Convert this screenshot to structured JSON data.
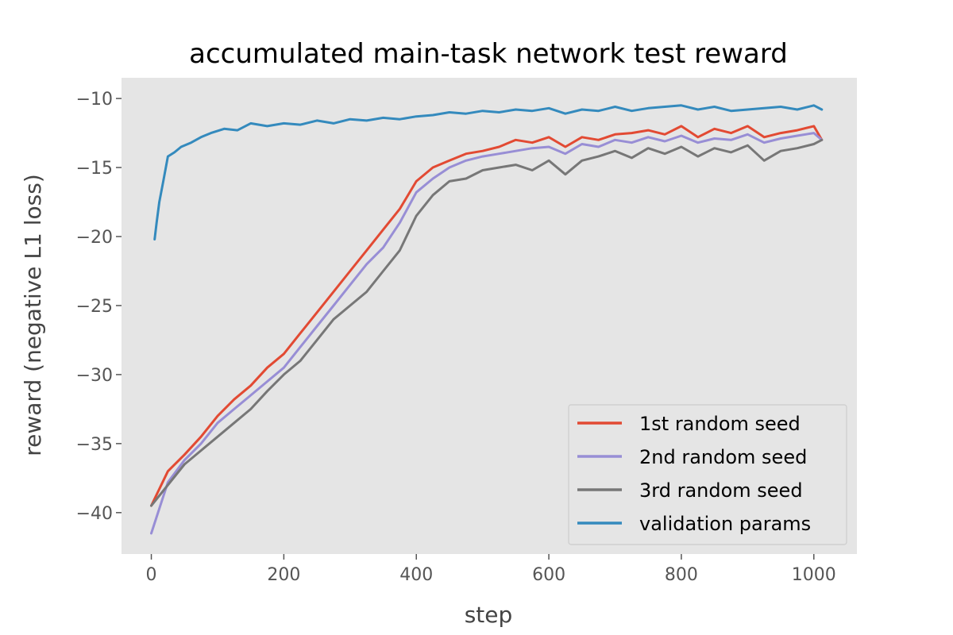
{
  "chart_data": {
    "type": "line",
    "title": "accumulated main-task network test reward",
    "xlabel": "step",
    "ylabel": "reward (negative L1 loss)",
    "xlim": [
      -45,
      1065
    ],
    "ylim": [
      -43.0,
      -8.5
    ],
    "xticks": [
      0,
      200,
      400,
      600,
      800,
      1000
    ],
    "yticks": [
      -40,
      -35,
      -30,
      -25,
      -20,
      -15,
      -10
    ],
    "xtick_labels": [
      "0",
      "200",
      "400",
      "600",
      "800",
      "1000"
    ],
    "ytick_labels": [
      "−40",
      "−35",
      "−30",
      "−25",
      "−20",
      "−15",
      "−10"
    ],
    "grid": false,
    "background": "#E5E5E5",
    "legend_position": "lower-right",
    "series": [
      {
        "name": "1st random seed",
        "color": "#E24A33",
        "x": [
          0,
          25,
          50,
          75,
          100,
          125,
          150,
          175,
          200,
          225,
          250,
          275,
          300,
          325,
          350,
          375,
          400,
          425,
          450,
          475,
          500,
          525,
          550,
          575,
          600,
          625,
          650,
          675,
          700,
          725,
          750,
          775,
          800,
          825,
          850,
          875,
          900,
          925,
          950,
          975,
          1000,
          1012
        ],
        "y": [
          -39.5,
          -37.0,
          -35.8,
          -34.5,
          -33.0,
          -31.8,
          -30.8,
          -29.5,
          -28.5,
          -27.0,
          -25.5,
          -24.0,
          -22.5,
          -21.0,
          -19.5,
          -18.0,
          -16.0,
          -15.0,
          -14.5,
          -14.0,
          -13.8,
          -13.5,
          -13.0,
          -13.2,
          -12.8,
          -13.5,
          -12.8,
          -13.0,
          -12.6,
          -12.5,
          -12.3,
          -12.6,
          -12.0,
          -12.8,
          -12.2,
          -12.5,
          -12.0,
          -12.8,
          -12.5,
          -12.3,
          -12.0,
          -13.0
        ]
      },
      {
        "name": "2nd random seed",
        "color": "#988ED5",
        "x": [
          0,
          25,
          50,
          75,
          100,
          125,
          150,
          175,
          200,
          225,
          250,
          275,
          300,
          325,
          350,
          375,
          400,
          425,
          450,
          475,
          500,
          525,
          550,
          575,
          600,
          625,
          650,
          675,
          700,
          725,
          750,
          775,
          800,
          825,
          850,
          875,
          900,
          925,
          950,
          975,
          1000,
          1012
        ],
        "y": [
          -41.5,
          -37.8,
          -36.2,
          -35.0,
          -33.5,
          -32.5,
          -31.5,
          -30.5,
          -29.5,
          -28.0,
          -26.5,
          -25.0,
          -23.5,
          -22.0,
          -20.8,
          -19.0,
          -16.8,
          -15.8,
          -15.0,
          -14.5,
          -14.2,
          -14.0,
          -13.8,
          -13.6,
          -13.5,
          -14.0,
          -13.3,
          -13.5,
          -13.0,
          -13.2,
          -12.8,
          -13.1,
          -12.7,
          -13.2,
          -12.9,
          -13.0,
          -12.6,
          -13.2,
          -12.9,
          -12.7,
          -12.5,
          -13.0
        ]
      },
      {
        "name": "3rd random seed",
        "color": "#777777",
        "x": [
          0,
          25,
          50,
          75,
          100,
          125,
          150,
          175,
          200,
          225,
          250,
          275,
          300,
          325,
          350,
          375,
          400,
          425,
          450,
          475,
          500,
          525,
          550,
          575,
          600,
          625,
          650,
          675,
          700,
          725,
          750,
          775,
          800,
          825,
          850,
          875,
          900,
          925,
          950,
          975,
          1000,
          1012
        ],
        "y": [
          -39.5,
          -38.0,
          -36.5,
          -35.5,
          -34.5,
          -33.5,
          -32.5,
          -31.2,
          -30.0,
          -29.0,
          -27.5,
          -26.0,
          -25.0,
          -24.0,
          -22.5,
          -21.0,
          -18.5,
          -17.0,
          -16.0,
          -15.8,
          -15.2,
          -15.0,
          -14.8,
          -15.2,
          -14.5,
          -15.5,
          -14.5,
          -14.2,
          -13.8,
          -14.3,
          -13.6,
          -14.0,
          -13.5,
          -14.2,
          -13.6,
          -13.9,
          -13.4,
          -14.5,
          -13.8,
          -13.6,
          -13.3,
          -13.0
        ]
      },
      {
        "name": "validation params",
        "color": "#348ABD",
        "x": [
          5,
          8,
          12,
          18,
          25,
          35,
          45,
          60,
          75,
          90,
          110,
          130,
          150,
          175,
          200,
          225,
          250,
          275,
          300,
          325,
          350,
          375,
          400,
          425,
          450,
          475,
          500,
          525,
          550,
          575,
          600,
          625,
          650,
          675,
          700,
          725,
          750,
          775,
          800,
          825,
          850,
          875,
          900,
          925,
          950,
          975,
          1000,
          1012
        ],
        "y": [
          -20.2,
          -19.0,
          -17.5,
          -16.0,
          -14.2,
          -13.9,
          -13.5,
          -13.2,
          -12.8,
          -12.5,
          -12.2,
          -12.3,
          -11.8,
          -12.0,
          -11.8,
          -11.9,
          -11.6,
          -11.8,
          -11.5,
          -11.6,
          -11.4,
          -11.5,
          -11.3,
          -11.2,
          -11.0,
          -11.1,
          -10.9,
          -11.0,
          -10.8,
          -10.9,
          -10.7,
          -11.1,
          -10.8,
          -10.9,
          -10.6,
          -10.9,
          -10.7,
          -10.6,
          -10.5,
          -10.8,
          -10.6,
          -10.9,
          -10.8,
          -10.7,
          -10.6,
          -10.8,
          -10.5,
          -10.8
        ]
      }
    ]
  }
}
